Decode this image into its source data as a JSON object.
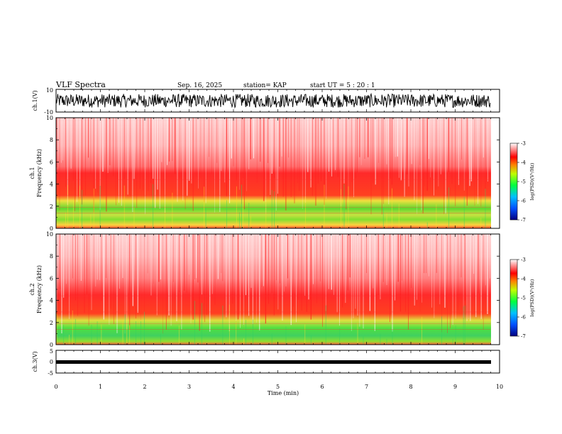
{
  "header": {
    "title": "VLF Spectra",
    "date": "Sep. 16, 2025",
    "station": "station= KAP",
    "start_ut": "start  UT =   5  : 20 : 1"
  },
  "chart_data": [
    {
      "type": "line",
      "panel": "ch1-voltage",
      "ylabel": "ch.1(V)",
      "ylim": [
        -10,
        10
      ],
      "y_tick_labels": [
        "10",
        "-10"
      ],
      "xlim": [
        0,
        10
      ],
      "approx_range": [
        -6,
        6
      ],
      "series": [
        {
          "color": "#000000"
        }
      ]
    },
    {
      "type": "heatmap",
      "panel": "ch1-spectrogram",
      "ylabel": [
        "ch.1",
        "Frequency  (kHz)"
      ],
      "ylim": [
        0,
        10
      ],
      "y_ticks": [
        0,
        2,
        4,
        6,
        8,
        10
      ],
      "xlim": [
        0,
        9.8
      ],
      "colorbar": {
        "label": "log(PSD)(V²/Hz)",
        "range": [
          -7,
          -3
        ],
        "ticks": [
          "-3",
          "-4",
          "-5",
          "-6",
          "-7"
        ]
      },
      "bands": [
        {
          "from_khz": 0,
          "to_khz": 1.0,
          "color": "mixed"
        },
        {
          "from_khz": 1.0,
          "to_khz": 3.3,
          "color": "green-yellow"
        },
        {
          "from_khz": 3.3,
          "to_khz": 5.5,
          "color": "red"
        },
        {
          "from_khz": 5.5,
          "to_khz": 10,
          "color": "red-white"
        }
      ]
    },
    {
      "type": "heatmap",
      "panel": "ch2-spectrogram",
      "ylabel": [
        "ch.2",
        "Frequency  (kHz)"
      ],
      "ylim": [
        0,
        10
      ],
      "y_ticks": [
        0,
        2,
        4,
        6,
        8,
        10
      ],
      "xlim": [
        0,
        9.8
      ],
      "colorbar": {
        "label": "log(PSD)(V²/Hz)",
        "range": [
          -7,
          -3
        ],
        "ticks": [
          "-3",
          "-4",
          "-5",
          "-6",
          "-7"
        ]
      },
      "bands": [
        {
          "from_khz": 0,
          "to_khz": 0.8,
          "color": "mixed"
        },
        {
          "from_khz": 0.8,
          "to_khz": 2.5,
          "color": "green"
        },
        {
          "from_khz": 2.5,
          "to_khz": 4.5,
          "color": "red"
        },
        {
          "from_khz": 4.5,
          "to_khz": 10,
          "color": "red-white"
        }
      ]
    },
    {
      "type": "line",
      "panel": "ch3-voltage",
      "ylabel": "ch.3(V)",
      "ylim": [
        -5,
        5
      ],
      "y_tick_labels": [
        "5",
        "0",
        "-5"
      ],
      "xlim": [
        0,
        10
      ],
      "approx_value": 0,
      "series": [
        {
          "color": "#000000"
        }
      ]
    }
  ],
  "x_axis": {
    "label": "Time  (min)",
    "ticks": [
      "0",
      "1",
      "2",
      "3",
      "4",
      "5",
      "6",
      "7",
      "8",
      "9",
      "10"
    ],
    "range": [
      0,
      10
    ]
  },
  "colors": {
    "low": "#000080",
    "mid": "#00ff00",
    "high": "#ff0000",
    "top": "#ffffff"
  }
}
